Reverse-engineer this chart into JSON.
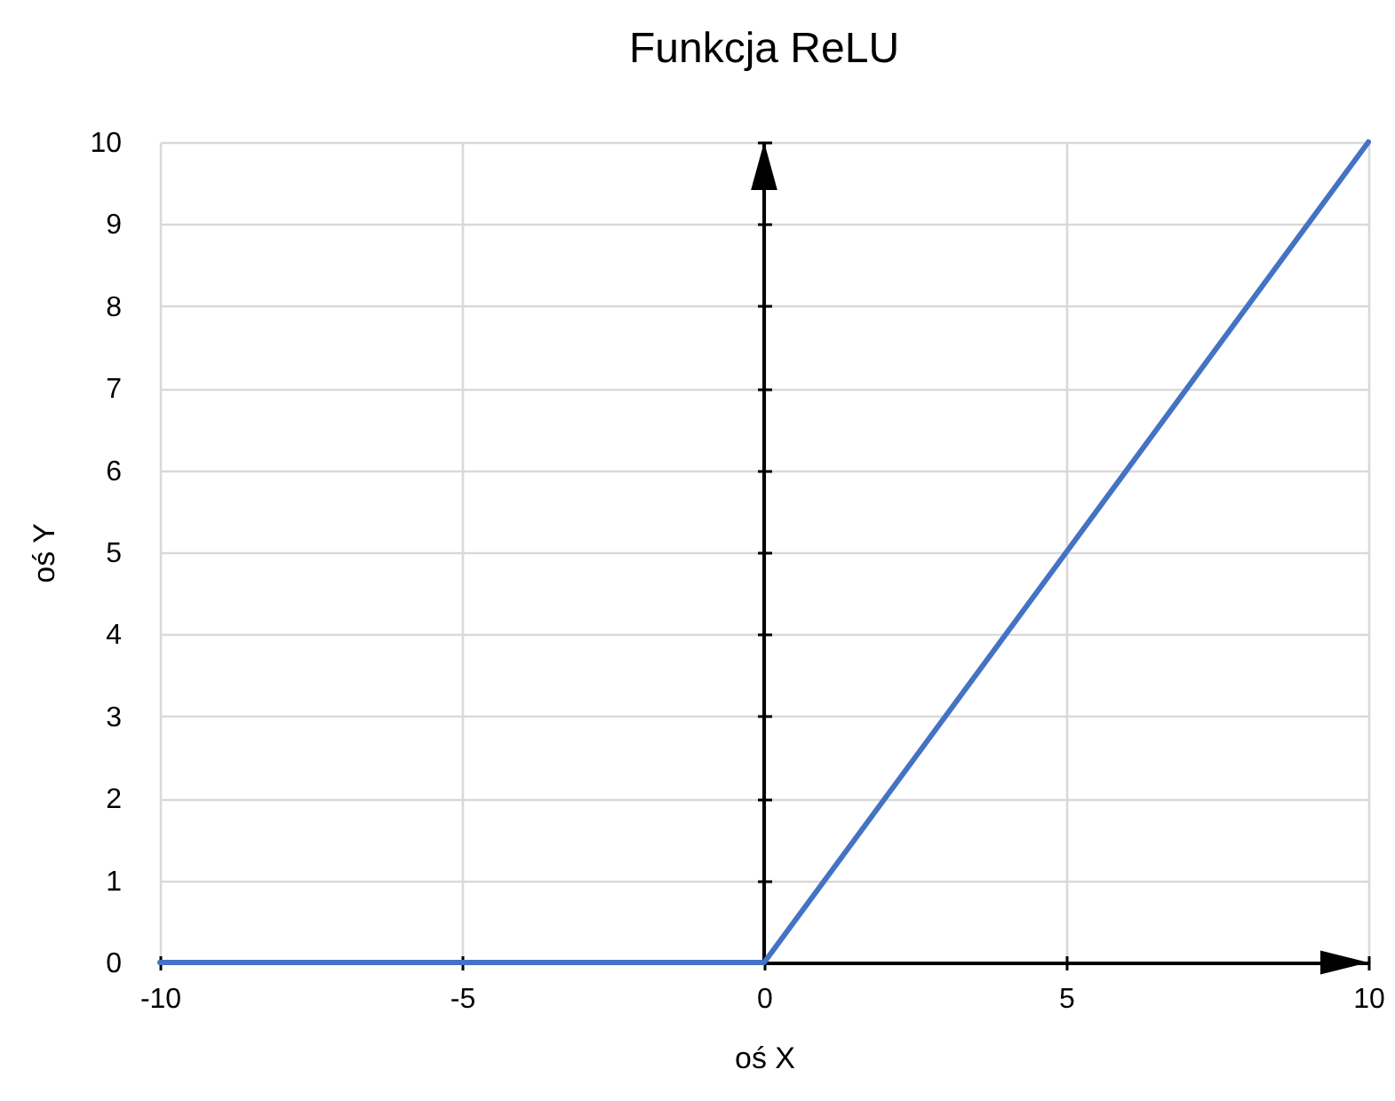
{
  "chart_data": {
    "type": "line",
    "title": "Funkcja ReLU",
    "xlabel": "oś X",
    "ylabel": "oś Y",
    "x": [
      -10,
      -5,
      0,
      5,
      10
    ],
    "series": [
      {
        "color": "#4472c4",
        "values": [
          0,
          0,
          0,
          5,
          10
        ]
      }
    ],
    "xlim": [
      -10,
      10
    ],
    "xticks": [
      -10,
      -5,
      0,
      5,
      10
    ],
    "ylim": [
      0,
      10
    ],
    "yticks": [
      0,
      1,
      2,
      3,
      4,
      5,
      6,
      7,
      8,
      9,
      10
    ],
    "ref_lines": [
      {
        "axis": "x",
        "value": 0,
        "color": "#000000"
      }
    ],
    "grid": true
  }
}
